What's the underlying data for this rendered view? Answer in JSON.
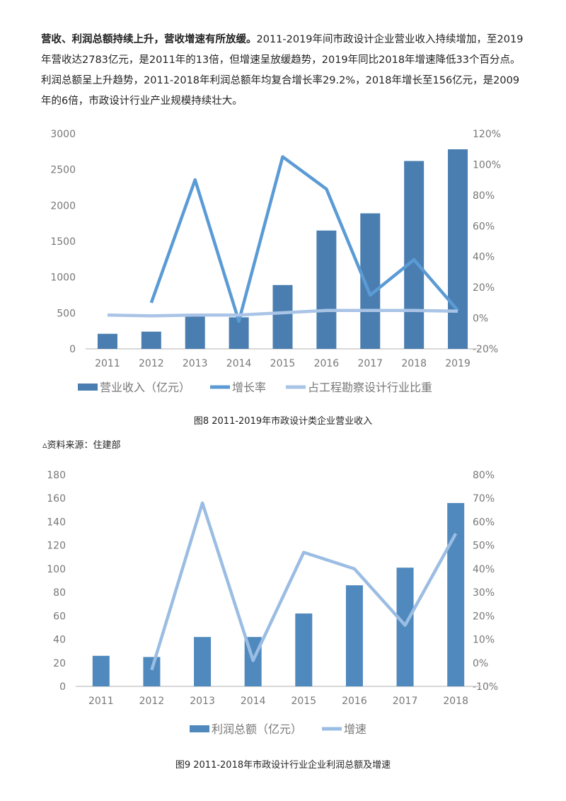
{
  "paragraph": {
    "bold": "营收、利润总额持续上升，营收增速有所放缓。",
    "text": "2011-2019年间市政设计企业营业收入持续增加，至2019年营收达2783亿元，是2011年的13倍，但增速呈放缓趋势，2019年同比2018年增速降低33个百分点。利润总额呈上升趋势，2011-2018年利润总额年均复合增长率29.2%，2018年增长至156亿元，是2009年的6倍，市政设计行业产业规模持续壮大。"
  },
  "caption1": "图8 2011-2019年市政设计类企业营业收入",
  "source": "▵资料来源：住建部",
  "caption2": "图9 2011-2018年市政设计行业企业利润总额及增速",
  "colors": {
    "bar": "#4a7eb0",
    "bar2": "#4f89bd",
    "growth": "#5b9bd5",
    "share": "#a9c4e6",
    "growth2": "#9bbde3"
  },
  "chart_data": [
    {
      "type": "bar+line",
      "categories": [
        "2011",
        "2012",
        "2013",
        "2014",
        "2015",
        "2016",
        "2017",
        "2018",
        "2019"
      ],
      "y_left": {
        "range": [
          0,
          3000
        ],
        "ticks": [
          "0",
          "500",
          "1000",
          "1500",
          "2000",
          "2500",
          "3000"
        ]
      },
      "y_right": {
        "range": [
          -20,
          120
        ],
        "ticks": [
          "-20%",
          "0%",
          "20%",
          "40%",
          "60%",
          "80%",
          "100%",
          "120%"
        ]
      },
      "series": [
        {
          "name": "营业收入（亿元）",
          "type": "bar",
          "axis": "left",
          "values": [
            210,
            240,
            450,
            440,
            890,
            1650,
            1890,
            2620,
            2783
          ]
        },
        {
          "name": "增长率",
          "type": "line",
          "axis": "right",
          "values": [
            null,
            10,
            90,
            -2,
            105,
            84,
            15,
            38,
            5
          ]
        },
        {
          "name": "占工程勘察设计行业比重",
          "type": "line",
          "axis": "right",
          "values": [
            2,
            1.5,
            2,
            2,
            3.5,
            5,
            5,
            5,
            4.5
          ]
        }
      ],
      "legend": "bottom"
    },
    {
      "type": "bar+line",
      "categories": [
        "2011",
        "2012",
        "2013",
        "2014",
        "2015",
        "2016",
        "2017",
        "2018"
      ],
      "y_left": {
        "range": [
          0,
          180
        ],
        "ticks": [
          "0",
          "20",
          "40",
          "60",
          "80",
          "100",
          "120",
          "140",
          "160",
          "180"
        ]
      },
      "y_right": {
        "range": [
          -10,
          80
        ],
        "ticks": [
          "-10%",
          "0%",
          "10%",
          "20%",
          "30%",
          "40%",
          "50%",
          "60%",
          "70%",
          "80%"
        ]
      },
      "series": [
        {
          "name": "利润总额（亿元）",
          "type": "bar",
          "axis": "left",
          "values": [
            26,
            25,
            42,
            42,
            62,
            86,
            101,
            156
          ]
        },
        {
          "name": "增速",
          "type": "line",
          "axis": "right",
          "values": [
            null,
            -3,
            68,
            1,
            47,
            40,
            16,
            55
          ]
        }
      ],
      "legend": "bottom"
    }
  ]
}
